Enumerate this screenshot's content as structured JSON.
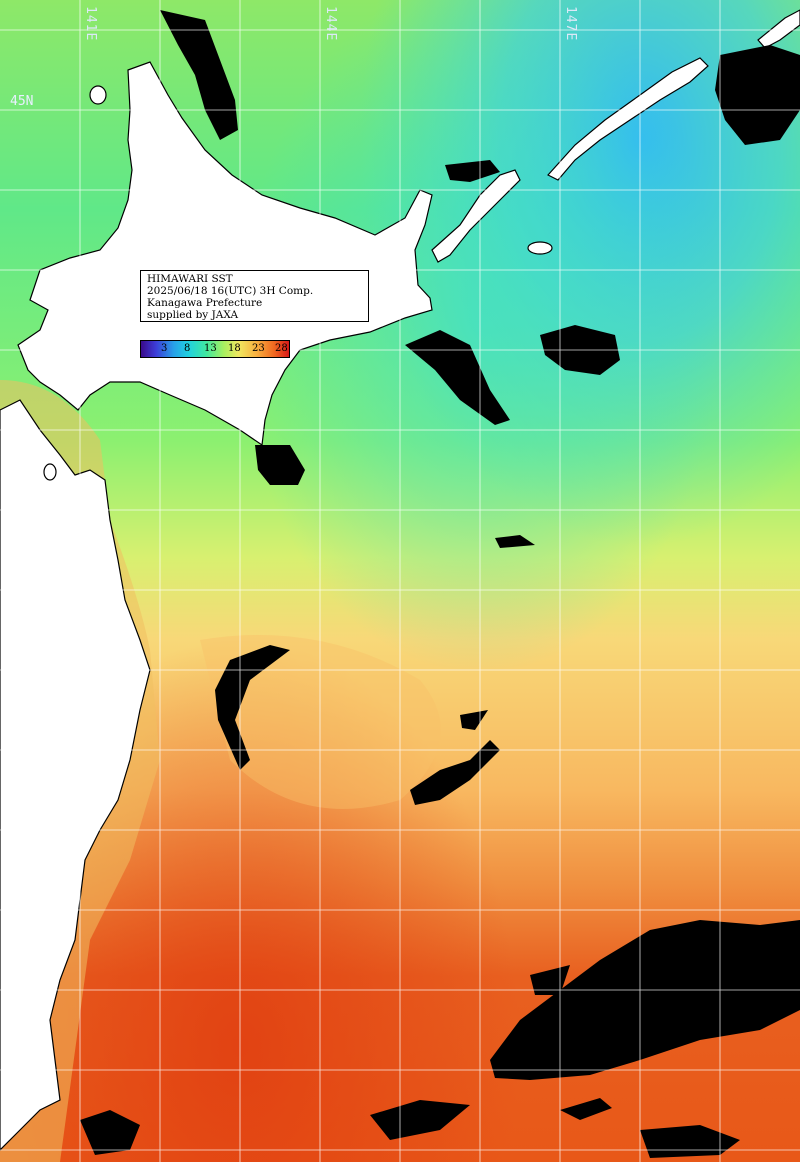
{
  "map": {
    "title_lines": [
      "HIMAWARI SST",
      "2025/06/18 16(UTC) 3H Comp.",
      "Kanagawa Prefecture",
      "supplied by JAXA"
    ],
    "longitude_labels": [
      "141E",
      "144E",
      "147E"
    ],
    "latitude_labels": [
      "45N"
    ],
    "colorbar_ticks": [
      "3",
      "8",
      "13",
      "18",
      "23",
      "28"
    ],
    "colors": {
      "land": "#ffffff",
      "cloud": "#000000",
      "grid": "#ffffff",
      "cold": "#30b8f0",
      "cool": "#50e890",
      "mild": "#a8f070",
      "warm": "#f8d870",
      "hot": "#f08030",
      "hottest": "#e84818"
    }
  }
}
